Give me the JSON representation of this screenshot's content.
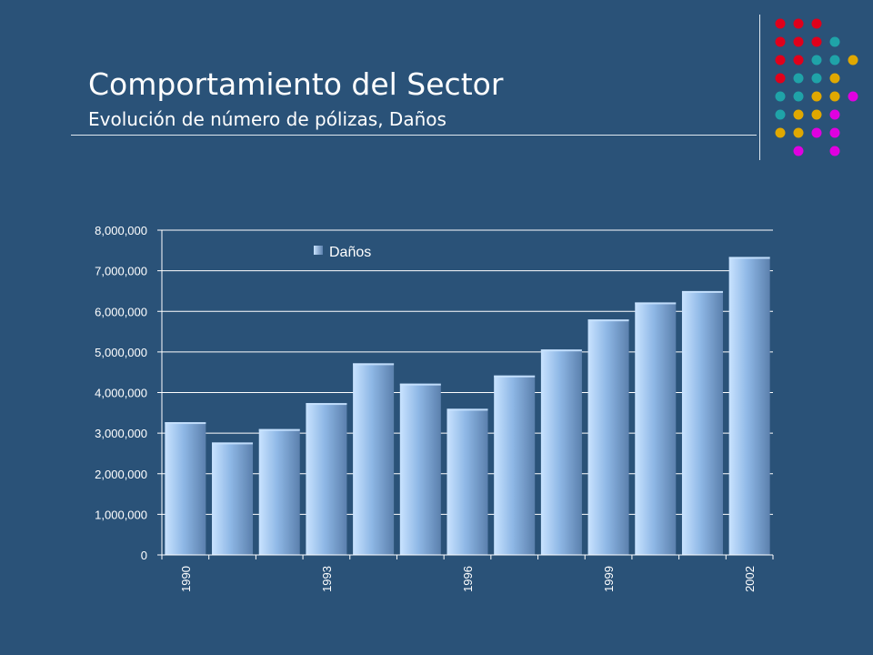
{
  "slide": {
    "title": "Comportamiento del Sector",
    "subtitle": "Evolución de número de pólizas, Daños"
  },
  "decoration": {
    "icon": "dot-grid-logo",
    "colors": {
      "red": "#e0001b",
      "teal": "#1fa3a8",
      "gold": "#e0a800",
      "magenta": "#e000e0"
    },
    "rows": [
      [
        "red",
        "red",
        "red",
        "",
        ""
      ],
      [
        "red",
        "red",
        "red",
        "teal",
        ""
      ],
      [
        "red",
        "red",
        "teal",
        "teal",
        "gold"
      ],
      [
        "red",
        "teal",
        "teal",
        "gold",
        ""
      ],
      [
        "teal",
        "teal",
        "gold",
        "gold",
        "magenta"
      ],
      [
        "teal",
        "gold",
        "gold",
        "magenta",
        ""
      ],
      [
        "gold",
        "gold",
        "magenta",
        "magenta",
        ""
      ],
      [
        "",
        "magenta",
        "",
        "magenta",
        ""
      ]
    ]
  },
  "chart_data": {
    "type": "bar",
    "legend": {
      "label": "Daños",
      "position": "top-left"
    },
    "categories": [
      "1990",
      "1991",
      "1992",
      "1993",
      "1994",
      "1995",
      "1996",
      "1997",
      "1998",
      "1999",
      "2000",
      "2001",
      "2002"
    ],
    "x_tick_labels": [
      "1990",
      "",
      "",
      "1993",
      "",
      "",
      "1996",
      "",
      "",
      "1999",
      "",
      "",
      "2002"
    ],
    "series": [
      {
        "name": "Daños",
        "values": [
          3270000,
          2770000,
          3100000,
          3740000,
          4720000,
          4220000,
          3600000,
          4420000,
          5060000,
          5800000,
          6220000,
          6500000,
          7340000
        ]
      }
    ],
    "ylim": [
      0,
      8000000
    ],
    "y_ticks": [
      0,
      1000000,
      2000000,
      3000000,
      4000000,
      5000000,
      6000000,
      7000000,
      8000000
    ],
    "y_tick_labels": [
      "0",
      "1,000,000",
      "2,000,000",
      "3,000,000",
      "4,000,000",
      "5,000,000",
      "6,000,000",
      "7,000,000",
      "8,000,000"
    ],
    "grid": true,
    "colors": {
      "bar_light": "#c9e3ff",
      "bar_mid": "#8fb8e6",
      "bar_dark": "#5b80ad",
      "grid": "#ffffff",
      "text": "#ffffff"
    }
  }
}
